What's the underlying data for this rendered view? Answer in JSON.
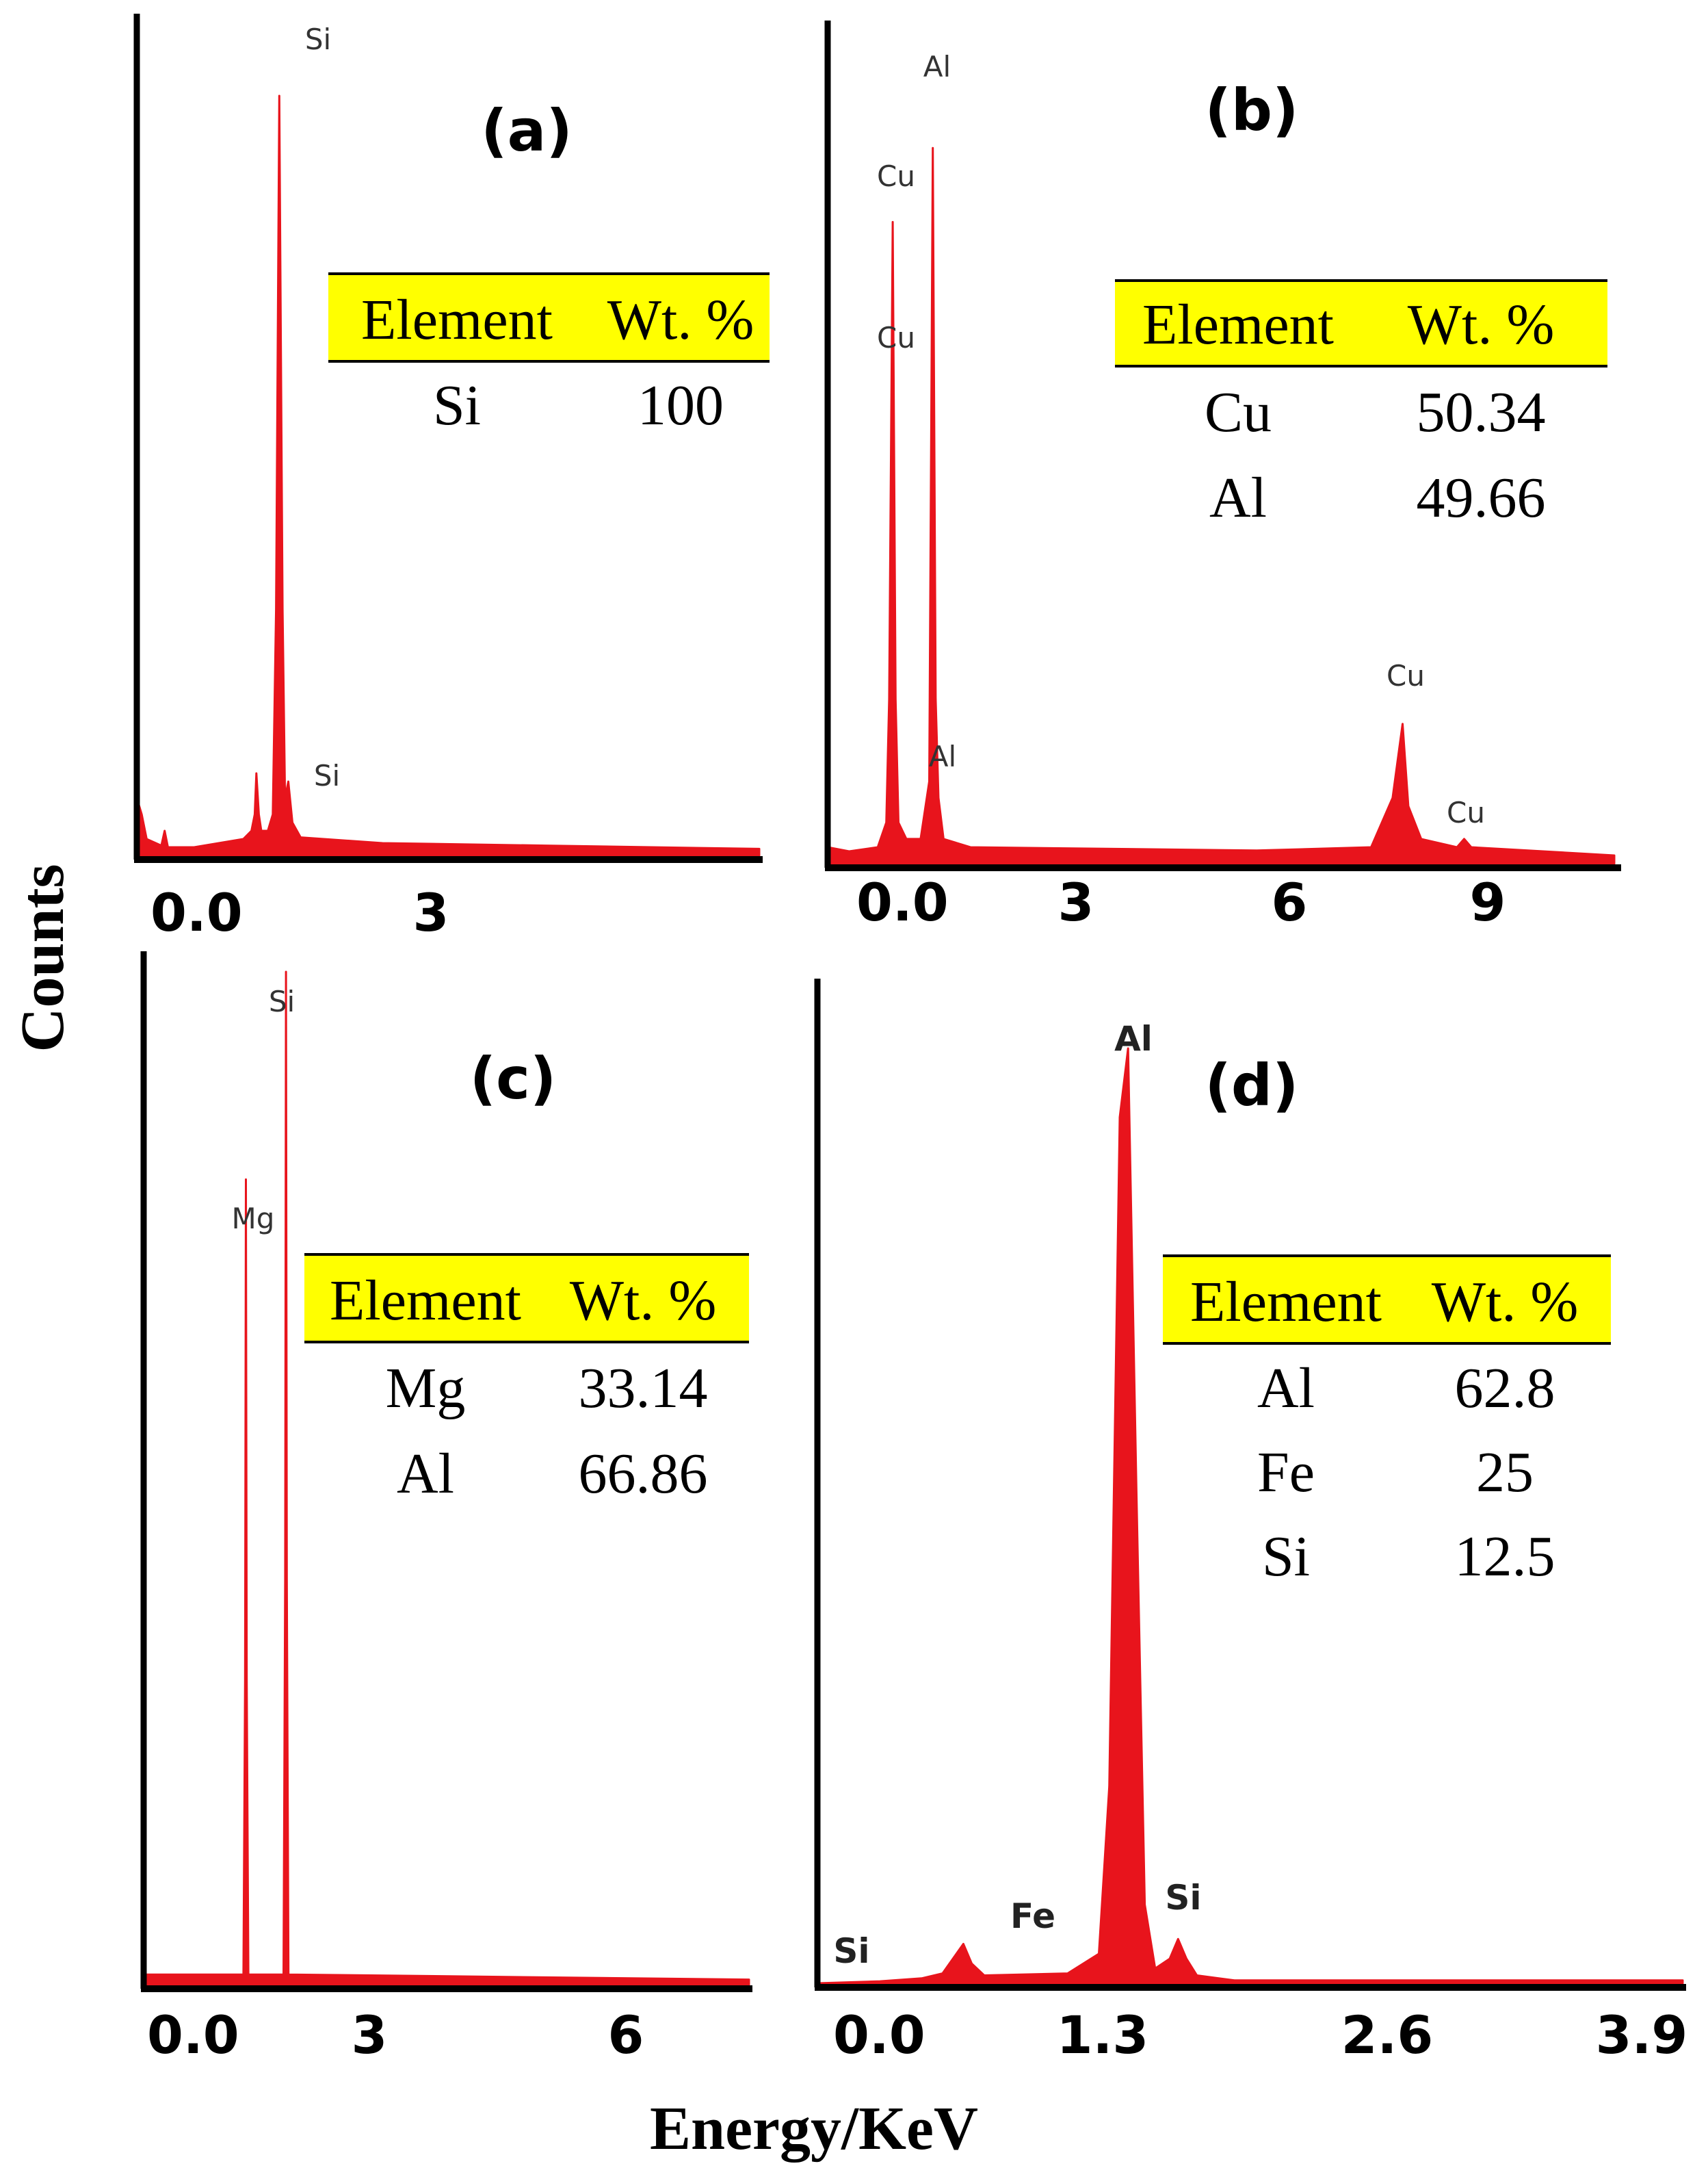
{
  "figure": {
    "ylabel": "Counts",
    "xlabel": "Energy/KeV",
    "table_headers": [
      "Element",
      "Wt. %"
    ]
  },
  "chart_data": [
    {
      "type": "line",
      "panel_label": "(a)",
      "x_ticks": [
        "0.0",
        "3"
      ],
      "xlim": [
        0,
        7.6
      ],
      "ylim": [
        0,
        1
      ],
      "peaks": [
        {
          "x": 1.74,
          "y": 0.925,
          "label": "Si"
        },
        {
          "x": 1.83,
          "y": 0.09,
          "label": "Si"
        }
      ],
      "spectrum": [
        [
          0,
          0.07
        ],
        [
          0.06,
          0.05
        ],
        [
          0.12,
          0.02
        ],
        [
          0.3,
          0.012
        ],
        [
          0.34,
          0.03
        ],
        [
          0.38,
          0.01
        ],
        [
          0.7,
          0.01
        ],
        [
          1.3,
          0.02
        ],
        [
          1.4,
          0.03
        ],
        [
          1.44,
          0.05
        ],
        [
          1.46,
          0.1
        ],
        [
          1.49,
          0.05
        ],
        [
          1.52,
          0.03
        ],
        [
          1.6,
          0.03
        ],
        [
          1.66,
          0.05
        ],
        [
          1.7,
          0.3
        ],
        [
          1.74,
          0.925
        ],
        [
          1.78,
          0.3
        ],
        [
          1.81,
          0.07
        ],
        [
          1.85,
          0.09
        ],
        [
          1.9,
          0.04
        ],
        [
          2.0,
          0.022
        ],
        [
          3.0,
          0.015
        ],
        [
          5.0,
          0.012
        ],
        [
          7.6,
          0.008
        ]
      ],
      "table": [
        {
          "element": "Si",
          "wt": "100"
        }
      ]
    },
    {
      "type": "line",
      "panel_label": "(b)",
      "x_ticks": [
        "0.0",
        "3",
        "6",
        "9"
      ],
      "xlim": [
        0,
        11
      ],
      "ylim": [
        0,
        1
      ],
      "peaks": [
        {
          "x": 1.49,
          "y": 0.9,
          "label": "Al"
        },
        {
          "x": 0.93,
          "y": 0.8,
          "label": "Cu"
        },
        {
          "x": 0.93,
          "y": 0.6,
          "label": "Cu"
        },
        {
          "x": 1.55,
          "y": 0.09,
          "label": "Al"
        },
        {
          "x": 8.05,
          "y": 0.17,
          "label": "Cu"
        },
        {
          "x": 8.9,
          "y": 0.03,
          "label": "Cu"
        }
      ],
      "spectrum": [
        [
          0,
          0.02
        ],
        [
          0.3,
          0.015
        ],
        [
          0.7,
          0.02
        ],
        [
          0.82,
          0.05
        ],
        [
          0.86,
          0.2
        ],
        [
          0.91,
          0.78
        ],
        [
          0.95,
          0.2
        ],
        [
          0.99,
          0.05
        ],
        [
          1.1,
          0.03
        ],
        [
          1.3,
          0.03
        ],
        [
          1.42,
          0.1
        ],
        [
          1.47,
          0.87
        ],
        [
          1.51,
          0.2
        ],
        [
          1.55,
          0.08
        ],
        [
          1.62,
          0.03
        ],
        [
          2.0,
          0.02
        ],
        [
          4.0,
          0.018
        ],
        [
          6.0,
          0.016
        ],
        [
          7.6,
          0.02
        ],
        [
          7.9,
          0.08
        ],
        [
          8.04,
          0.17
        ],
        [
          8.12,
          0.07
        ],
        [
          8.3,
          0.03
        ],
        [
          8.8,
          0.02
        ],
        [
          8.9,
          0.03
        ],
        [
          9.0,
          0.02
        ],
        [
          11,
          0.01
        ]
      ],
      "table": [
        {
          "element": "Cu",
          "wt": "50.34"
        },
        {
          "element": "Al",
          "wt": "49.66"
        }
      ]
    },
    {
      "type": "line",
      "panel_label": "(c)",
      "x_ticks": [
        "0.0",
        "3",
        "6"
      ],
      "xlim": [
        0,
        7.4
      ],
      "ylim": [
        0,
        1
      ],
      "peaks": [
        {
          "x": 1.25,
          "y": 0.795,
          "label": "Mg"
        },
        {
          "x": 1.74,
          "y": 1.0,
          "label": "Si"
        }
      ],
      "spectrum": [
        [
          0,
          0.01
        ],
        [
          1.22,
          0.01
        ],
        [
          1.24,
          0.3
        ],
        [
          1.25,
          0.795
        ],
        [
          1.26,
          0.3
        ],
        [
          1.28,
          0.01
        ],
        [
          1.71,
          0.01
        ],
        [
          1.73,
          0.4
        ],
        [
          1.74,
          1.0
        ],
        [
          1.75,
          0.4
        ],
        [
          1.77,
          0.01
        ],
        [
          7.4,
          0.005
        ]
      ],
      "table": [
        {
          "element": "Mg",
          "wt": "33.14"
        },
        {
          "element": "Al",
          "wt": "66.86"
        }
      ]
    },
    {
      "type": "line",
      "panel_label": "(d)",
      "x_ticks": [
        "0.0",
        "1.3",
        "2.6",
        "3.9"
      ],
      "xlim": [
        0,
        4.15
      ],
      "ylim": [
        0,
        1
      ],
      "peaks": [
        {
          "x": 1.49,
          "y": 0.95,
          "label": "Al"
        },
        {
          "x": 0.71,
          "y": 0.04,
          "label": "Fe"
        },
        {
          "x": 1.74,
          "y": 0.045,
          "label": "Si"
        },
        {
          "x": 0.05,
          "y": 0.0,
          "label": "Si"
        }
      ],
      "spectrum": [
        [
          0,
          0.0
        ],
        [
          0.3,
          0.002
        ],
        [
          0.5,
          0.005
        ],
        [
          0.6,
          0.01
        ],
        [
          0.65,
          0.025
        ],
        [
          0.7,
          0.04
        ],
        [
          0.74,
          0.02
        ],
        [
          0.8,
          0.008
        ],
        [
          1.2,
          0.01
        ],
        [
          1.35,
          0.03
        ],
        [
          1.4,
          0.2
        ],
        [
          1.45,
          0.88
        ],
        [
          1.49,
          0.95
        ],
        [
          1.53,
          0.5
        ],
        [
          1.57,
          0.08
        ],
        [
          1.62,
          0.015
        ],
        [
          1.69,
          0.025
        ],
        [
          1.73,
          0.045
        ],
        [
          1.77,
          0.025
        ],
        [
          1.82,
          0.008
        ],
        [
          2.0,
          0.003
        ],
        [
          4.15,
          0.003
        ]
      ],
      "table": [
        {
          "element": "Al",
          "wt": "62.8"
        },
        {
          "element": "Fe",
          "wt": "25"
        },
        {
          "element": "Si",
          "wt": "12.5"
        }
      ]
    }
  ]
}
